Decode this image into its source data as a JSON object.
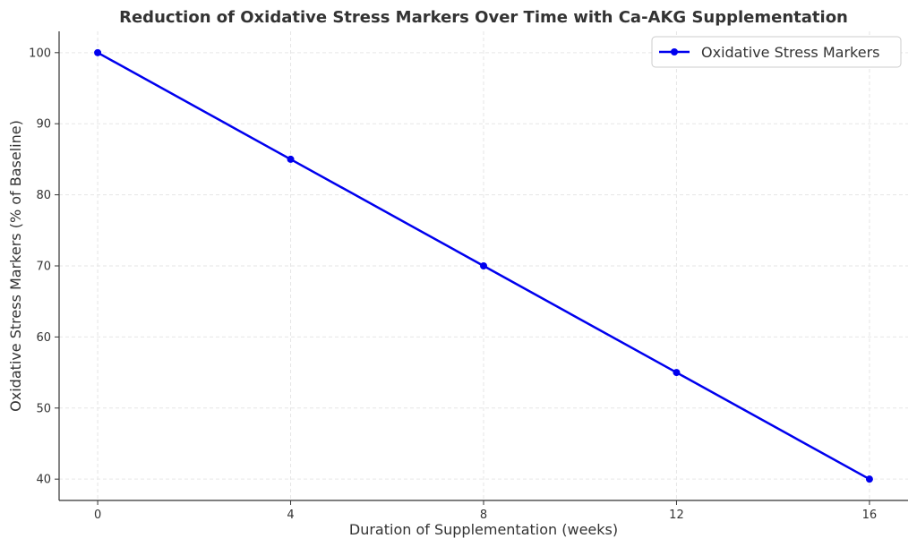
{
  "colors": {
    "series": "#0000ee",
    "axis": "#333333",
    "grid": "#e6e6e6",
    "legend_border": "#cccccc"
  },
  "chart_data": {
    "type": "line",
    "title": "Reduction of Oxidative Stress Markers Over Time with Ca-AKG Supplementation",
    "xlabel": "Duration of Supplementation (weeks)",
    "ylabel": "Oxidative Stress Markers (% of Baseline)",
    "x": [
      0,
      4,
      8,
      12,
      16
    ],
    "series": [
      {
        "name": "Oxidative Stress Markers",
        "values": [
          100,
          85,
          70,
          55,
          40
        ],
        "marker": "circle"
      }
    ],
    "xlim": [
      -0.8,
      16.8
    ],
    "ylim": [
      37,
      103
    ],
    "xticks": [
      0,
      4,
      8,
      12,
      16
    ],
    "yticks": [
      40,
      50,
      60,
      70,
      80,
      90,
      100
    ],
    "grid": true,
    "grid_style": "dashed",
    "legend_position": "top-right"
  }
}
